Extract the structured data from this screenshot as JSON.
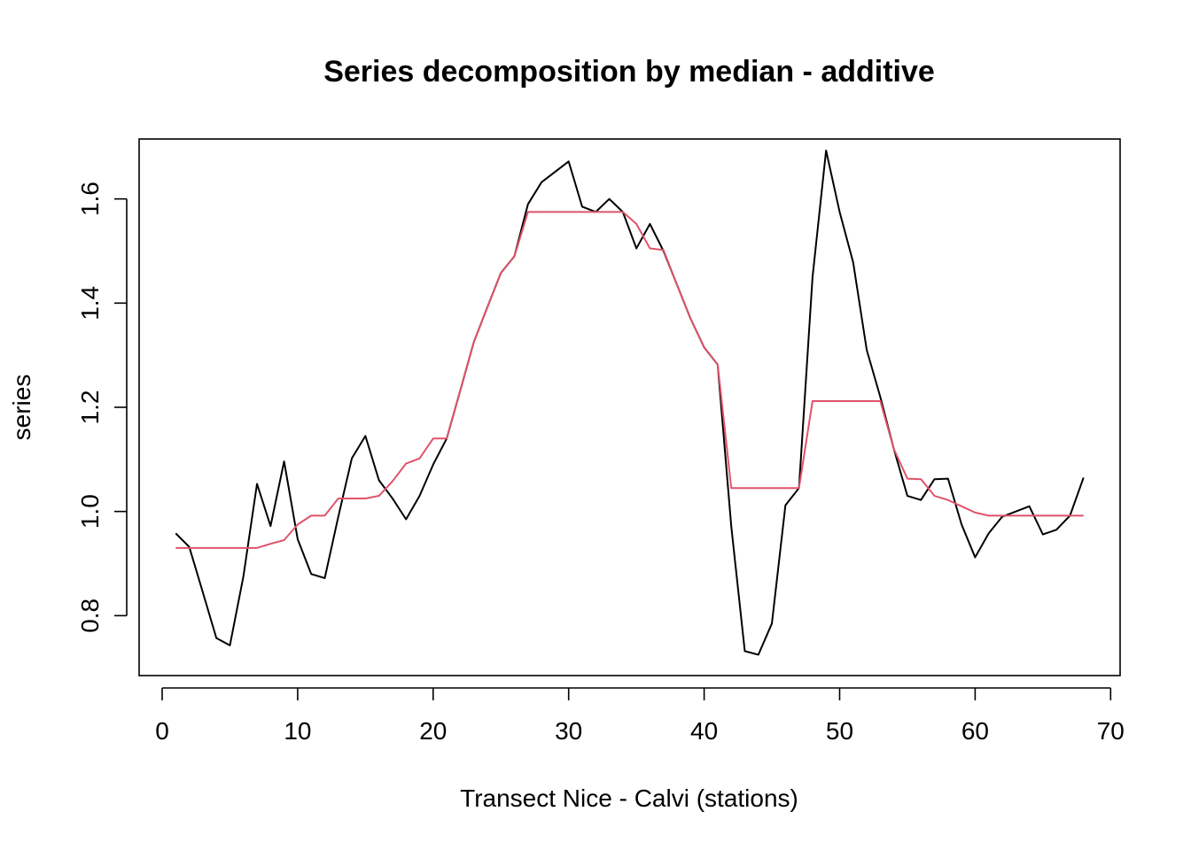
{
  "chart_data": {
    "type": "line",
    "title": "Series decomposition by median - additive",
    "xlabel": "Transect Nice - Calvi (stations)",
    "ylabel": "series",
    "xlim": [
      -1.7,
      70.7
    ],
    "ylim": [
      0.685,
      1.715
    ],
    "x_ticks": [
      0,
      10,
      20,
      30,
      40,
      50,
      60,
      70
    ],
    "y_ticks": [
      0.8,
      1.0,
      1.2,
      1.4,
      1.6
    ],
    "y_tick_labels": [
      "0.8",
      "1.0",
      "1.2",
      "1.4",
      "1.6"
    ],
    "grid": false,
    "legend": "none",
    "x": [
      1,
      2,
      3,
      4,
      5,
      6,
      7,
      8,
      9,
      10,
      11,
      12,
      13,
      14,
      15,
      16,
      17,
      18,
      19,
      20,
      21,
      22,
      23,
      24,
      25,
      26,
      27,
      28,
      29,
      30,
      31,
      32,
      33,
      34,
      35,
      36,
      37,
      38,
      39,
      40,
      41,
      42,
      43,
      44,
      45,
      46,
      47,
      48,
      49,
      50,
      51,
      52,
      53,
      54,
      55,
      56,
      57,
      58,
      59,
      60,
      61,
      62,
      63,
      64,
      65,
      66,
      67,
      68
    ],
    "series": [
      {
        "color": "#000000",
        "values": [
          0.958,
          0.932,
          0.845,
          0.757,
          0.743,
          0.876,
          1.053,
          0.972,
          1.096,
          0.947,
          0.88,
          0.872,
          0.99,
          1.102,
          1.145,
          1.06,
          1.025,
          0.985,
          1.03,
          1.09,
          1.14,
          1.232,
          1.325,
          1.392,
          1.458,
          1.49,
          1.59,
          1.632,
          1.652,
          1.672,
          1.585,
          1.575,
          1.6,
          1.575,
          1.505,
          1.552,
          1.5,
          1.435,
          1.37,
          1.315,
          1.282,
          0.972,
          0.732,
          0.725,
          0.785,
          1.012,
          1.045,
          1.45,
          1.693,
          1.575,
          1.478,
          1.31,
          1.22,
          1.12,
          1.03,
          1.022,
          1.062,
          1.063,
          0.975,
          0.912,
          0.958,
          0.99,
          1.0,
          1.01,
          0.956,
          0.965,
          0.992,
          1.065
        ]
      },
      {
        "color": "#DF536B",
        "values": [
          0.93,
          0.93,
          0.93,
          0.93,
          0.93,
          0.93,
          0.93,
          0.938,
          0.945,
          0.975,
          0.992,
          0.992,
          1.025,
          1.025,
          1.025,
          1.03,
          1.058,
          1.092,
          1.102,
          1.14,
          1.14,
          1.232,
          1.325,
          1.392,
          1.458,
          1.49,
          1.575,
          1.575,
          1.575,
          1.575,
          1.575,
          1.575,
          1.575,
          1.575,
          1.552,
          1.505,
          1.502,
          1.435,
          1.37,
          1.315,
          1.282,
          1.045,
          1.045,
          1.045,
          1.045,
          1.045,
          1.045,
          1.212,
          1.212,
          1.212,
          1.212,
          1.212,
          1.212,
          1.12,
          1.063,
          1.062,
          1.03,
          1.022,
          1.01,
          0.998,
          0.992,
          0.992,
          0.992,
          0.992,
          0.992,
          0.992,
          0.992,
          0.992
        ]
      }
    ]
  }
}
